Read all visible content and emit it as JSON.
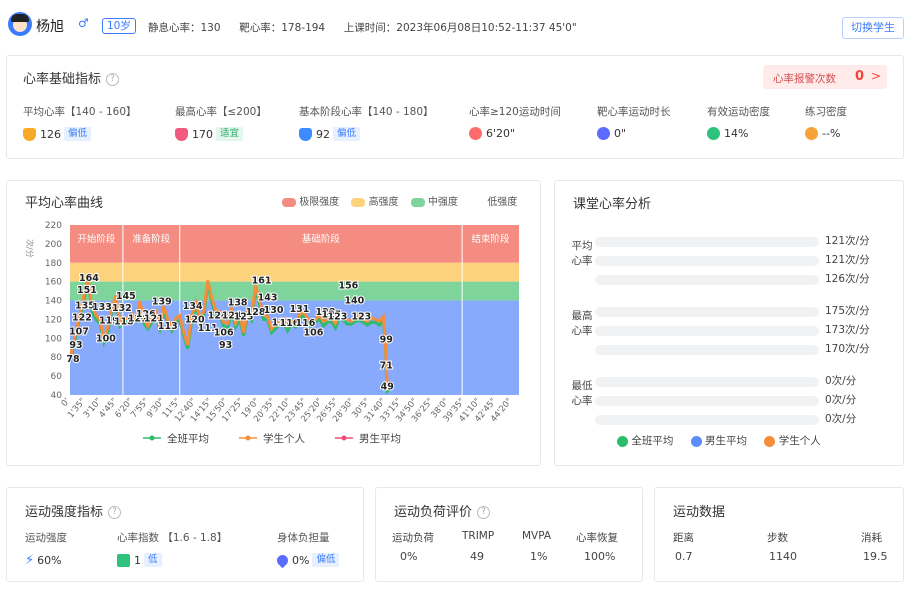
{
  "header": {
    "name": "杨旭",
    "gender_icon": "male-icon",
    "age": "10岁",
    "resting_hr_label": "静息心率：",
    "resting_hr": "130",
    "target_hr_label": "靶心率：",
    "target_hr": "178-194",
    "class_time_label": "上课时间：",
    "class_time": "2023年06月08日10:52-11:37 45'0\"",
    "switch_button": "切换学生"
  },
  "basic": {
    "title": "心率基础指标",
    "alarm_label": "心率报警次数",
    "alarm_count": "0",
    "alarm_arrow": ">",
    "metrics": [
      {
        "label": "平均心率【140 - 160】",
        "value": "126",
        "badge": "偏低",
        "icon": "heart-pulse-icon",
        "color": "#f7a928"
      },
      {
        "label": "最高心率【≤200】",
        "value": "170",
        "badge": "适宜",
        "icon": "heart-icon",
        "color": "#f05a7e"
      },
      {
        "label": "基本阶段心率【140 - 180】",
        "value": "92",
        "badge": "偏低",
        "icon": "heart-blue-icon",
        "color": "#3d8bff"
      },
      {
        "label": "心率≥120运动时间",
        "value": "6'20\"",
        "icon": "clock-icon",
        "color": "#ff6b6b"
      },
      {
        "label": "靶心率运动时长",
        "value": "0\"",
        "icon": "target-icon",
        "color": "#5b6bff"
      },
      {
        "label": "有效运动密度",
        "value": "14%",
        "icon": "activity-icon",
        "color": "#2ec27e"
      },
      {
        "label": "练习密度",
        "value": "--%",
        "icon": "practice-icon",
        "color": "#f6a33a"
      }
    ]
  },
  "curve": {
    "title": "平均心率曲线",
    "unit": "次/分",
    "legend_extreme": "极限强度",
    "legend_high": "高强度",
    "legend_mid": "中强度",
    "legend_low": "低强度",
    "phases": [
      "开始阶段",
      "准备阶段",
      "基础阶段",
      "结束阶段"
    ],
    "bottom_legend": [
      "全班平均",
      "学生个人",
      "男生平均"
    ]
  },
  "colors": {
    "extreme": "#f48c82",
    "high": "#fcd27c",
    "mid": "#7ed49a",
    "low": "#87aafc",
    "orange": "#f58d3a",
    "green": "#2dbb6c",
    "blue": "#5b8dfc",
    "pink": "#ee4d7c"
  },
  "chart_data": {
    "type": "area",
    "ylabel": "次/分",
    "ylim": [
      40,
      220
    ],
    "yticks": [
      40,
      60,
      80,
      100,
      120,
      140,
      160,
      180,
      200,
      220
    ],
    "xticks": [
      "0'",
      "1'35\"",
      "3'10\"",
      "4'45\"",
      "6'20\"",
      "7'55\"",
      "9'30\"",
      "11'5\"",
      "12'40\"",
      "14'15\"",
      "15'50\"",
      "17'25\"",
      "19'0\"",
      "20'35\"",
      "22'10\"",
      "23'45\"",
      "25'20\"",
      "26'55\"",
      "28'30\"",
      "30'5\"",
      "31'40\"",
      "33'15\"",
      "34'50\"",
      "36'25\"",
      "38'0\"",
      "39'35\"",
      "41'10\"",
      "42'45\"",
      "44'20\""
    ],
    "zones": [
      {
        "name": "极限强度",
        "from": 180,
        "to": 220
      },
      {
        "name": "高强度",
        "from": 160,
        "to": 180
      },
      {
        "name": "中强度",
        "from": 140,
        "to": 160
      },
      {
        "name": "低强度",
        "from": 40,
        "to": 140
      }
    ],
    "phases": [
      {
        "name": "开始阶段",
        "from_min": 0,
        "to_min": 5.3
      },
      {
        "name": "准备阶段",
        "from_min": 5.3,
        "to_min": 11.0
      },
      {
        "name": "基础阶段",
        "from_min": 11.0,
        "to_min": 39.3
      },
      {
        "name": "结束阶段",
        "from_min": 39.3,
        "to_min": 45.0
      }
    ],
    "series": [
      {
        "name": "学生个人",
        "color": "#f58d3a",
        "x": [
          0,
          0.3,
          0.6,
          0.9,
          1.2,
          1.5,
          1.8,
          2.2,
          2.6,
          3.0,
          3.4,
          3.8,
          4.2,
          4.6,
          5.0,
          5.4,
          5.8,
          6.2,
          6.6,
          7.0,
          7.4,
          7.8,
          8.2,
          8.6,
          9.0,
          9.4,
          9.8,
          10.2,
          10.6,
          11.0,
          11.4,
          11.8,
          12.2,
          12.6,
          13.0,
          13.4,
          13.8,
          14.2,
          14.6,
          15.0,
          15.4,
          15.8,
          16.2,
          16.6,
          17.0,
          17.4,
          17.8,
          18.2,
          18.6,
          19.0,
          19.4,
          19.8,
          20.2,
          20.6,
          21.0,
          21.4,
          21.8,
          22.2,
          22.6,
          23.0,
          23.4,
          23.8,
          24.2,
          24.6,
          25.0,
          25.4,
          25.8,
          26.2,
          26.6,
          27.0,
          27.4,
          27.8,
          28.2,
          28.6,
          29.0,
          29.4,
          29.8,
          30.2,
          30.6,
          31.0,
          31.4,
          31.6,
          31.7,
          31.8,
          32.0
        ],
        "values": [
          78,
          93,
          107,
          122,
          135,
          151,
          164,
          133,
          125,
          119,
          100,
          112,
          132,
          145,
          118,
          121,
          121,
          126,
          121,
          139,
          121,
          113,
          121,
          128,
          113,
          134,
          120,
          111,
          121,
          124,
          106,
          93,
          124,
          138,
          123,
          128,
          161,
          143,
          130,
          128,
          117,
          116,
          131,
          116,
          125,
          106,
          128,
          124,
          156,
          140,
          125,
          123,
          110,
          115,
          118,
          121,
          113,
          118,
          116,
          125,
          128,
          121,
          118,
          120,
          125,
          118,
          120,
          122,
          116,
          125,
          123,
          120,
          118,
          122,
          124,
          120,
          118,
          122,
          120,
          118,
          123,
          99,
          71,
          49,
          49
        ]
      },
      {
        "name": "全班平均",
        "color": "#2dbb6c"
      },
      {
        "name": "男生平均",
        "color": "#ee4d7c"
      }
    ],
    "point_labels": [
      {
        "x": 0.3,
        "v": "78"
      },
      {
        "x": 0.6,
        "v": "93"
      },
      {
        "x": 0.9,
        "v": "107"
      },
      {
        "x": 1.2,
        "v": "122"
      },
      {
        "x": 1.5,
        "v": "135"
      },
      {
        "x": 1.7,
        "v": "151"
      },
      {
        "x": 1.9,
        "v": "164"
      },
      {
        "x": 3.2,
        "v": "133"
      },
      {
        "x": 3.9,
        "v": "119"
      },
      {
        "x": 3.6,
        "v": "100"
      },
      {
        "x": 5.2,
        "v": "132"
      },
      {
        "x": 5.6,
        "v": "145"
      },
      {
        "x": 5.4,
        "v": "118"
      },
      {
        "x": 6.8,
        "v": "121"
      },
      {
        "x": 7.6,
        "v": "126"
      },
      {
        "x": 8.4,
        "v": "121"
      },
      {
        "x": 9.2,
        "v": "139"
      },
      {
        "x": 9.8,
        "v": "113"
      },
      {
        "x": 12.3,
        "v": "134"
      },
      {
        "x": 12.5,
        "v": "120"
      },
      {
        "x": 13.8,
        "v": "111"
      },
      {
        "x": 14.8,
        "v": "124"
      },
      {
        "x": 15.4,
        "v": "106"
      },
      {
        "x": 15.6,
        "v": "93"
      },
      {
        "x": 16.2,
        "v": "124"
      },
      {
        "x": 16.8,
        "v": "138"
      },
      {
        "x": 17.4,
        "v": "123"
      },
      {
        "x": 18.6,
        "v": "128"
      },
      {
        "x": 19.2,
        "v": "161"
      },
      {
        "x": 19.8,
        "v": "143"
      },
      {
        "x": 20.4,
        "v": "130"
      },
      {
        "x": 21.2,
        "v": "117"
      },
      {
        "x": 22.0,
        "v": "116"
      },
      {
        "x": 23.0,
        "v": "131"
      },
      {
        "x": 23.6,
        "v": "116"
      },
      {
        "x": 24.4,
        "v": "106"
      },
      {
        "x": 25.6,
        "v": "128"
      },
      {
        "x": 26.2,
        "v": "125"
      },
      {
        "x": 26.8,
        "v": "123"
      },
      {
        "x": 27.9,
        "v": "156"
      },
      {
        "x": 28.5,
        "v": "140"
      },
      {
        "x": 29.2,
        "v": "123"
      },
      {
        "x": 31.7,
        "v": "99"
      },
      {
        "x": 31.7,
        "v": "71"
      },
      {
        "x": 31.8,
        "v": "49"
      }
    ]
  },
  "analysis": {
    "title": "课堂心率分析",
    "groups": [
      {
        "label": "平均心率",
        "values": [
          "121次/分",
          "121次/分",
          "126次/分"
        ]
      },
      {
        "label": "最高心率",
        "values": [
          "175次/分",
          "173次/分",
          "170次/分"
        ]
      },
      {
        "label": "最低心率",
        "values": [
          "0次/分",
          "0次/分",
          "0次/分"
        ]
      }
    ],
    "legend": [
      "全班平均",
      "男生平均",
      "学生个人"
    ]
  },
  "intensity": {
    "title": "运动强度指标",
    "items": [
      {
        "label": "运动强度",
        "value": "60%"
      },
      {
        "label": "心率指数 【1.6 - 1.8】",
        "value": "1",
        "badge": "低"
      },
      {
        "label": "身体负担量",
        "value": "0%",
        "badge": "偏低"
      }
    ]
  },
  "load": {
    "title": "运动负荷评价",
    "cols": [
      {
        "label": "运动负荷",
        "value": "0%"
      },
      {
        "label": "TRIMP",
        "value": "49"
      },
      {
        "label": "MVPA",
        "value": "1%"
      },
      {
        "label": "心率恢复",
        "value": "100%"
      }
    ]
  },
  "sport": {
    "title": "运动数据",
    "cols": [
      {
        "label": "距离",
        "value": "0.7"
      },
      {
        "label": "步数",
        "value": "1140"
      },
      {
        "label": "消耗",
        "value": "19.5"
      }
    ]
  }
}
